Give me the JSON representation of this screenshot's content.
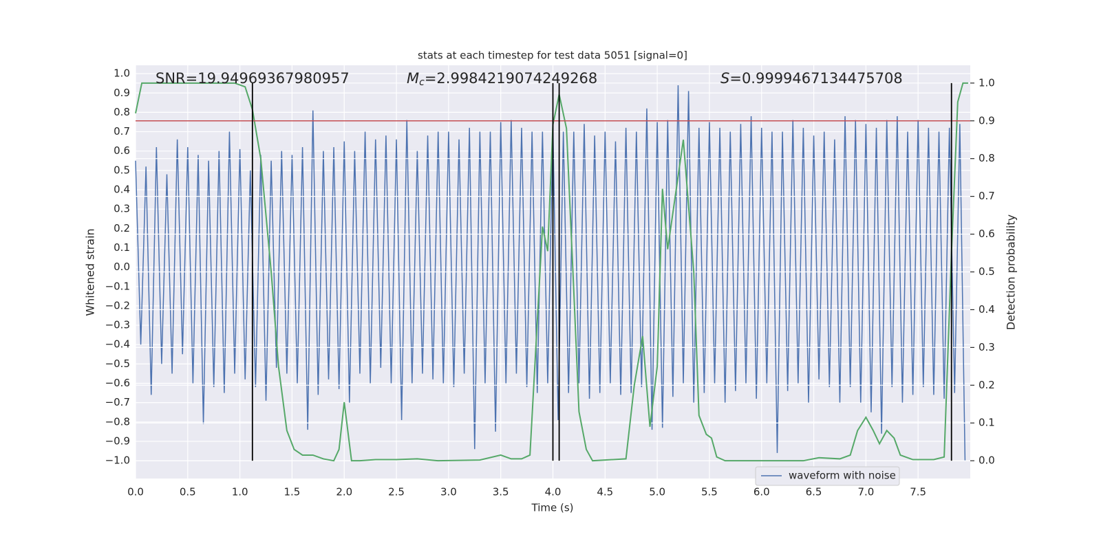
{
  "chart_data": {
    "type": "line",
    "title": "stats at each timestep for test data 5051 [signal=0]",
    "xlabel": "Time (s)",
    "ylabel": "Whitened strain",
    "y2label": "Detection probability",
    "annotations": [
      {
        "text": "SNR=19.94969367980957"
      },
      {
        "symbol": "M",
        "subscript": "c",
        "text": "=2.9984219074249268"
      },
      {
        "symbol": "S",
        "text": "=0.9999467134475708"
      }
    ],
    "xlim": [
      0,
      8
    ],
    "ylim": [
      -1.092,
      1.043
    ],
    "y2lim": [
      -0.047,
      1.047
    ],
    "grid": true,
    "legend": "lower right",
    "xticks": [
      {
        "value": 0,
        "label": "0.0"
      },
      {
        "value": 0.5,
        "label": "0.5"
      },
      {
        "value": 1,
        "label": "1.0"
      },
      {
        "value": 1.5,
        "label": "1.5"
      },
      {
        "value": 2,
        "label": "2.0"
      },
      {
        "value": 2.5,
        "label": "2.5"
      },
      {
        "value": 3,
        "label": "3.0"
      },
      {
        "value": 3.5,
        "label": "3.5"
      },
      {
        "value": 4,
        "label": "4.0"
      },
      {
        "value": 4.5,
        "label": "4.5"
      },
      {
        "value": 5,
        "label": "5.0"
      },
      {
        "value": 5.5,
        "label": "5.5"
      },
      {
        "value": 6,
        "label": "6.0"
      },
      {
        "value": 6.5,
        "label": "6.5"
      },
      {
        "value": 7,
        "label": "7.0"
      },
      {
        "value": 7.5,
        "label": "7.5"
      }
    ],
    "yticks": [
      {
        "value": 1,
        "label": "1.0"
      },
      0.9,
      0.8,
      0.7,
      0.6,
      0.5,
      0.4,
      0.3,
      0.2,
      0.1,
      {
        "value": 0,
        "label": "0.0"
      },
      {
        "value": -0.1,
        "label": "−0.1"
      },
      {
        "value": -0.2,
        "label": "−0.2"
      },
      {
        "value": -0.3,
        "label": "−0.3"
      },
      {
        "value": -0.4,
        "label": "−0.4"
      },
      {
        "value": -0.5,
        "label": "−0.5"
      },
      {
        "value": -0.6,
        "label": "−0.6"
      },
      {
        "value": -0.7,
        "label": "−0.7"
      },
      {
        "value": -0.8,
        "label": "−0.8"
      },
      {
        "value": -0.9,
        "label": "−0.9"
      },
      {
        "value": -1,
        "label": "−1.0"
      }
    ],
    "y2ticks": [
      {
        "value": 0,
        "label": "0.0"
      },
      0.1,
      0.2,
      0.3,
      0.4,
      0.5,
      0.6,
      0.7,
      0.8,
      0.9,
      {
        "value": 1,
        "label": "1.0"
      }
    ],
    "threshold": {
      "value": 0.9,
      "axis": "y2",
      "color": "#c44e52"
    },
    "vlines": {
      "x": [
        1.12,
        4.0,
        4.06,
        7.82
      ],
      "y2": [
        0,
        1
      ],
      "color": "#000000"
    },
    "series": [
      {
        "name": "waveform with noise",
        "color": "#4c72b0",
        "x": [
          0,
          0.05,
          0.1,
          0.15,
          0.2,
          0.25,
          0.3,
          0.35,
          0.4,
          0.45,
          0.5,
          0.55,
          0.6,
          0.65,
          0.7,
          0.75,
          0.8,
          0.85,
          0.9,
          0.95,
          1,
          1.05,
          1.1,
          1.15,
          1.2,
          1.25,
          1.3,
          1.35,
          1.4,
          1.45,
          1.5,
          1.55,
          1.6,
          1.65,
          1.7,
          1.75,
          1.8,
          1.85,
          1.9,
          1.95,
          2,
          2.05,
          2.1,
          2.15,
          2.2,
          2.25,
          2.3,
          2.35,
          2.4,
          2.45,
          2.5,
          2.55,
          2.6,
          2.65,
          2.7,
          2.75,
          2.8,
          2.85,
          2.9,
          2.95,
          3,
          3.05,
          3.1,
          3.15,
          3.2,
          3.25,
          3.3,
          3.35,
          3.4,
          3.45,
          3.5,
          3.55,
          3.6,
          3.65,
          3.7,
          3.75,
          3.8,
          3.85,
          3.9,
          3.95,
          4,
          4.05,
          4.1,
          4.15,
          4.2,
          4.25,
          4.3,
          4.35,
          4.4,
          4.45,
          4.5,
          4.55,
          4.6,
          4.65,
          4.7,
          4.75,
          4.8,
          4.85,
          4.9,
          4.95,
          5,
          5.05,
          5.1,
          5.15,
          5.2,
          5.25,
          5.3,
          5.35,
          5.4,
          5.45,
          5.5,
          5.55,
          5.6,
          5.65,
          5.7,
          5.75,
          5.8,
          5.85,
          5.9,
          5.95,
          6,
          6.05,
          6.1,
          6.15,
          6.2,
          6.25,
          6.3,
          6.35,
          6.4,
          6.45,
          6.5,
          6.55,
          6.6,
          6.65,
          6.7,
          6.75,
          6.8,
          6.85,
          6.9,
          6.95,
          7,
          7.05,
          7.1,
          7.15,
          7.2,
          7.25,
          7.3,
          7.35,
          7.4,
          7.45,
          7.5,
          7.55,
          7.6,
          7.65,
          7.7,
          7.75,
          7.8,
          7.85,
          7.9,
          7.95
        ],
        "values": [
          0.55,
          -0.4,
          0.52,
          -0.66,
          0.62,
          -0.5,
          0.48,
          -0.55,
          0.66,
          -0.45,
          0.62,
          -0.6,
          0.58,
          -0.81,
          0.55,
          -0.62,
          0.6,
          -0.65,
          0.7,
          -0.55,
          0.61,
          -0.58,
          0.5,
          -0.62,
          0.58,
          -0.69,
          0.55,
          -0.52,
          0.6,
          -0.55,
          0.58,
          -0.6,
          0.62,
          -0.84,
          0.81,
          -0.66,
          0.6,
          -0.58,
          0.62,
          -0.63,
          0.65,
          -0.7,
          0.6,
          -0.55,
          0.7,
          -0.6,
          0.66,
          -0.52,
          0.68,
          -0.6,
          0.66,
          -0.79,
          0.76,
          -0.6,
          0.6,
          -0.55,
          0.68,
          -0.58,
          0.7,
          -0.6,
          0.7,
          -0.62,
          0.66,
          -0.55,
          0.72,
          -0.94,
          0.7,
          -0.6,
          0.7,
          -0.85,
          0.75,
          -0.6,
          0.76,
          -0.55,
          0.72,
          -0.62,
          0.7,
          -0.65,
          0.7,
          -0.6,
          0.72,
          -0.79,
          0.7,
          -0.65,
          0.7,
          -0.6,
          0.74,
          -0.68,
          0.68,
          -0.65,
          0.7,
          -0.6,
          0.65,
          -0.66,
          0.72,
          -0.65,
          0.7,
          -0.62,
          0.82,
          -0.84,
          0.75,
          -0.83,
          0.76,
          -0.67,
          0.94,
          -0.6,
          0.91,
          -0.7,
          0.72,
          -0.65,
          0.75,
          -0.6,
          0.72,
          -0.7,
          0.7,
          -0.64,
          0.74,
          -0.6,
          0.78,
          -0.68,
          0.72,
          -0.6,
          0.7,
          -0.96,
          0.7,
          -0.64,
          0.76,
          -0.6,
          0.72,
          -0.7,
          0.68,
          -0.58,
          0.7,
          -0.62,
          0.66,
          -0.7,
          0.78,
          -0.62,
          0.76,
          -0.7,
          0.74,
          -0.75,
          0.72,
          -0.86,
          0.76,
          -0.62,
          0.78,
          -0.7,
          0.7,
          -0.66,
          0.76,
          -0.62,
          0.72,
          -0.66,
          0.7,
          -0.68,
          0.72,
          -0.65,
          0.74,
          -1.0
        ]
      },
      {
        "color": "#55a868",
        "axis": "y2",
        "x": [
          0,
          0.06,
          0.5,
          0.95,
          1.05,
          1.12,
          1.2,
          1.3,
          1.37,
          1.45,
          1.52,
          1.6,
          1.7,
          1.8,
          1.9,
          1.95,
          2.0,
          2.07,
          2.15,
          2.3,
          2.5,
          2.7,
          2.9,
          3.3,
          3.5,
          3.6,
          3.7,
          3.78,
          3.9,
          3.95,
          4.0,
          4.06,
          4.13,
          4.2,
          4.25,
          4.32,
          4.38,
          4.7,
          4.78,
          4.86,
          4.93,
          5.0,
          5.05,
          5.1,
          5.25,
          5.35,
          5.4,
          5.47,
          5.52,
          5.57,
          5.65,
          6.2,
          6.4,
          6.55,
          6.75,
          6.85,
          6.92,
          7.0,
          7.07,
          7.13,
          7.2,
          7.27,
          7.33,
          7.45,
          7.65,
          7.75,
          7.82,
          7.88,
          7.93,
          7.98
        ],
        "values": [
          0.92,
          1.0,
          1.0,
          1.0,
          0.99,
          0.93,
          0.8,
          0.5,
          0.25,
          0.08,
          0.03,
          0.015,
          0.015,
          0.005,
          0.0,
          0.03,
          0.155,
          0.0,
          0.0,
          0.003,
          0.003,
          0.005,
          0.0,
          0.002,
          0.015,
          0.005,
          0.005,
          0.015,
          0.62,
          0.555,
          0.89,
          0.97,
          0.88,
          0.45,
          0.13,
          0.03,
          0.0,
          0.005,
          0.2,
          0.33,
          0.09,
          0.25,
          0.72,
          0.56,
          0.85,
          0.5,
          0.12,
          0.07,
          0.06,
          0.01,
          0.0,
          0.0,
          0.0,
          0.008,
          0.005,
          0.015,
          0.08,
          0.115,
          0.08,
          0.045,
          0.08,
          0.06,
          0.015,
          0.003,
          0.003,
          0.01,
          0.55,
          0.95,
          1.0,
          1.0
        ]
      }
    ]
  }
}
